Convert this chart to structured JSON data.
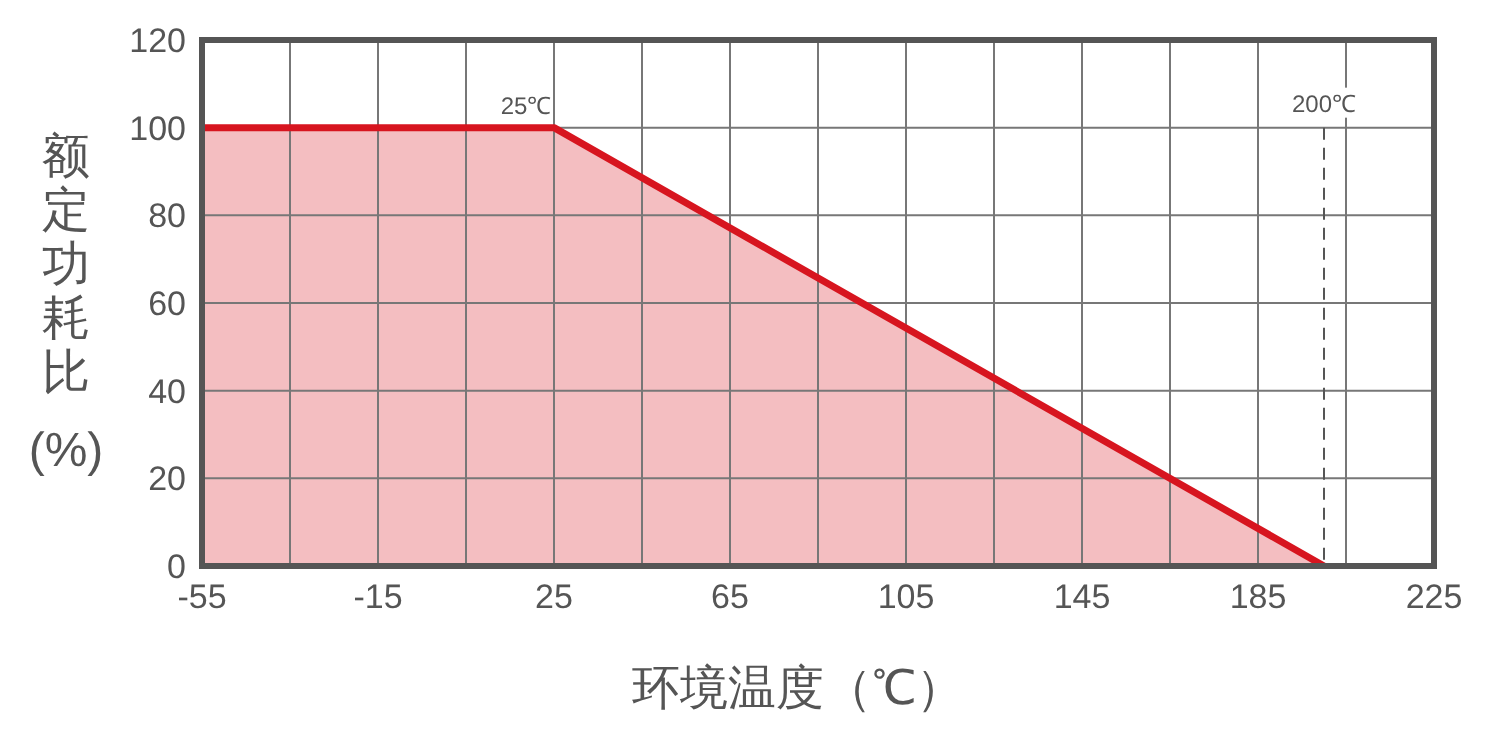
{
  "chart_data": {
    "type": "area",
    "xlabel": "环境温度（℃）",
    "ylabel": "额定功耗比(%)",
    "x": [
      -55,
      25,
      200
    ],
    "series": [
      {
        "color": "#d7151f",
        "values": [
          100,
          100,
          0
        ]
      }
    ],
    "xlim": [
      -55,
      225
    ],
    "xticks": [
      -55,
      {
        "value": -35,
        "label": null
      },
      -15,
      {
        "value": 5,
        "label": null
      },
      25,
      {
        "value": 45,
        "label": null
      },
      65,
      {
        "value": 85,
        "label": null
      },
      105,
      {
        "value": 125,
        "label": null
      },
      145,
      {
        "value": 165,
        "label": null
      },
      185,
      {
        "value": 205,
        "label": null
      },
      225
    ],
    "ylim": [
      0,
      120
    ],
    "yticks": [
      0,
      20,
      40,
      60,
      80,
      100,
      120
    ],
    "grid": true,
    "ref_lines": [
      {
        "axis": "x",
        "value": 200,
        "label": "200℃",
        "line_style": "dashed",
        "color": "#555555"
      }
    ],
    "annotations": [
      {
        "text": "25℃",
        "x": 25,
        "y": 100
      }
    ]
  }
}
